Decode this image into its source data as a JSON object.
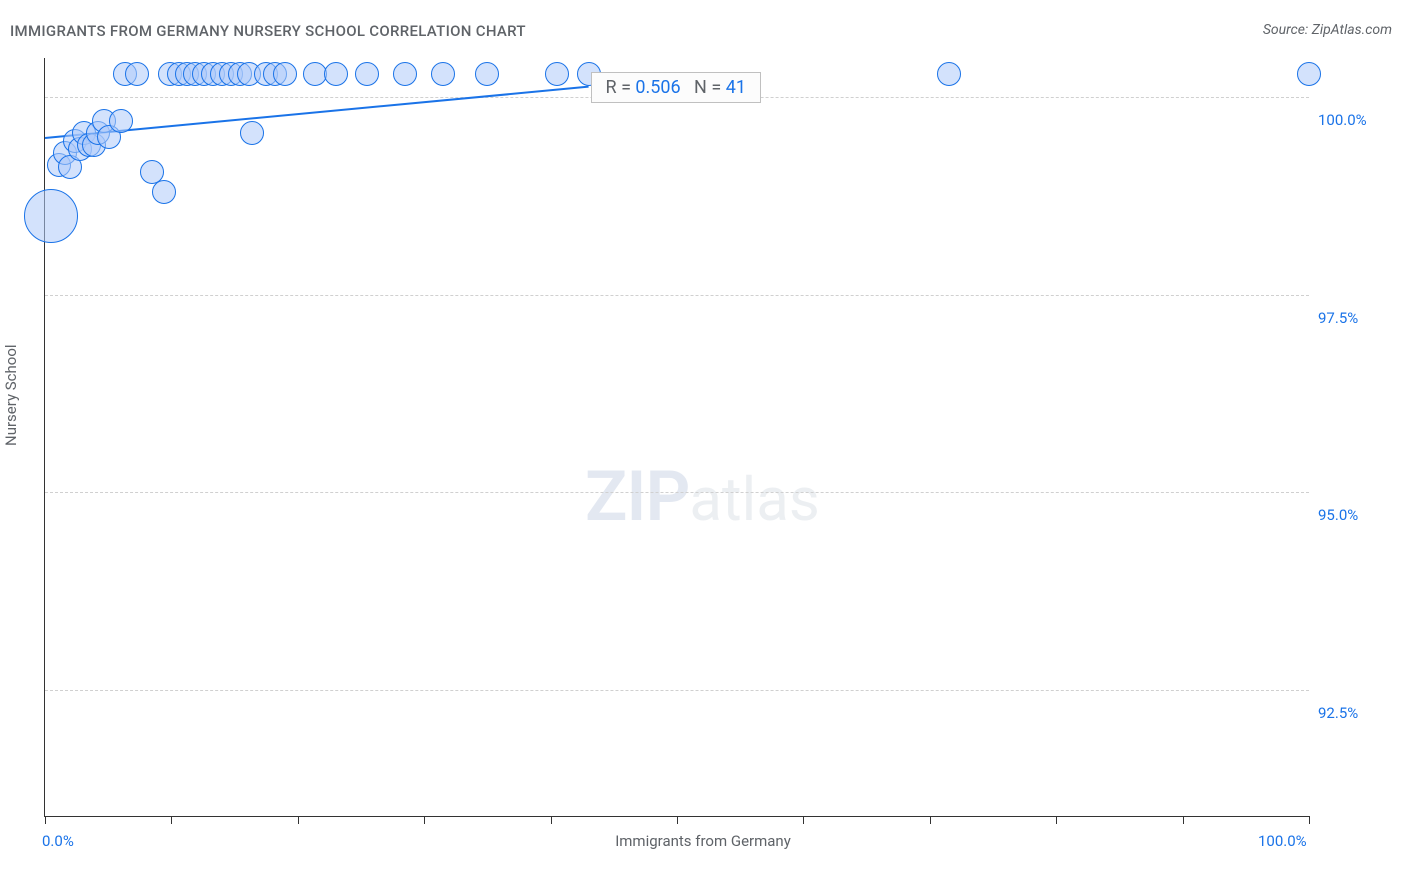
{
  "title": "IMMIGRANTS FROM GERMANY NURSERY SCHOOL CORRELATION CHART",
  "source_prefix": "Source: ",
  "source_name": "ZipAtlas.com",
  "chart": {
    "type": "scatter",
    "xlabel": "Immigrants from Germany",
    "ylabel": "Nursery School",
    "xlim": [
      0,
      100
    ],
    "ylim": [
      90.9,
      100.5
    ],
    "x_tick_positions": [
      0,
      10,
      20,
      30,
      40,
      50,
      60,
      70,
      80,
      90,
      100
    ],
    "x_tick_labels_shown": {
      "0": "0.0%",
      "100": "100.0%"
    },
    "y_ticks": [
      {
        "value": 92.5,
        "label": "92.5%"
      },
      {
        "value": 95.0,
        "label": "95.0%"
      },
      {
        "value": 97.5,
        "label": "97.5%"
      },
      {
        "value": 100.0,
        "label": "100.0%"
      }
    ],
    "grid_color": "#d0d0d0",
    "axis_color": "#333333",
    "background_color": "#ffffff",
    "point_fill": "rgba(174,203,250,0.55)",
    "point_stroke": "#1a73e8",
    "trend_color": "#1a73e8",
    "label_color": "#1a73e8",
    "title_color": "#5f6368",
    "title_fontsize": 15,
    "tick_fontsize": 15,
    "stat_fontsize": 18,
    "r_value": "0.506",
    "n_value": "41",
    "stat_prefix_r": "R = ",
    "stat_prefix_n": "N = ",
    "trend_line": {
      "x1": 0,
      "y1": 99.5,
      "x2": 43,
      "y2": 100.15
    },
    "points": [
      {
        "x": 0.5,
        "y": 98.5,
        "r": 26
      },
      {
        "x": 1.1,
        "y": 99.15,
        "r": 11
      },
      {
        "x": 1.6,
        "y": 99.3,
        "r": 11
      },
      {
        "x": 2.0,
        "y": 99.12,
        "r": 11
      },
      {
        "x": 2.4,
        "y": 99.45,
        "r": 11
      },
      {
        "x": 2.8,
        "y": 99.35,
        "r": 11
      },
      {
        "x": 3.1,
        "y": 99.55,
        "r": 11
      },
      {
        "x": 3.5,
        "y": 99.4,
        "r": 11
      },
      {
        "x": 3.9,
        "y": 99.4,
        "r": 11
      },
      {
        "x": 4.2,
        "y": 99.55,
        "r": 11
      },
      {
        "x": 4.7,
        "y": 99.7,
        "r": 11
      },
      {
        "x": 5.1,
        "y": 99.5,
        "r": 11
      },
      {
        "x": 6.0,
        "y": 99.7,
        "r": 11
      },
      {
        "x": 6.3,
        "y": 100.3,
        "r": 11
      },
      {
        "x": 7.3,
        "y": 100.3,
        "r": 11
      },
      {
        "x": 8.5,
        "y": 99.05,
        "r": 11
      },
      {
        "x": 9.4,
        "y": 98.8,
        "r": 11
      },
      {
        "x": 9.9,
        "y": 100.3,
        "r": 11
      },
      {
        "x": 10.6,
        "y": 100.3,
        "r": 11
      },
      {
        "x": 11.2,
        "y": 100.3,
        "r": 11
      },
      {
        "x": 11.9,
        "y": 100.3,
        "r": 11
      },
      {
        "x": 12.6,
        "y": 100.3,
        "r": 11
      },
      {
        "x": 13.3,
        "y": 100.3,
        "r": 11
      },
      {
        "x": 14.0,
        "y": 100.3,
        "r": 11
      },
      {
        "x": 14.7,
        "y": 100.3,
        "r": 11
      },
      {
        "x": 15.4,
        "y": 100.3,
        "r": 11
      },
      {
        "x": 16.1,
        "y": 100.3,
        "r": 11
      },
      {
        "x": 16.4,
        "y": 99.55,
        "r": 11
      },
      {
        "x": 17.5,
        "y": 100.3,
        "r": 11
      },
      {
        "x": 18.2,
        "y": 100.3,
        "r": 11
      },
      {
        "x": 19.0,
        "y": 100.3,
        "r": 11
      },
      {
        "x": 21.4,
        "y": 100.3,
        "r": 11
      },
      {
        "x": 23.0,
        "y": 100.3,
        "r": 11
      },
      {
        "x": 25.5,
        "y": 100.3,
        "r": 11
      },
      {
        "x": 28.5,
        "y": 100.3,
        "r": 11
      },
      {
        "x": 31.5,
        "y": 100.3,
        "r": 11
      },
      {
        "x": 35.0,
        "y": 100.3,
        "r": 11
      },
      {
        "x": 40.5,
        "y": 100.3,
        "r": 11
      },
      {
        "x": 43.0,
        "y": 100.3,
        "r": 11
      },
      {
        "x": 71.5,
        "y": 100.3,
        "r": 11
      },
      {
        "x": 100.0,
        "y": 100.3,
        "r": 11
      }
    ],
    "watermark_primary": "ZIP",
    "watermark_secondary": "atlas"
  }
}
